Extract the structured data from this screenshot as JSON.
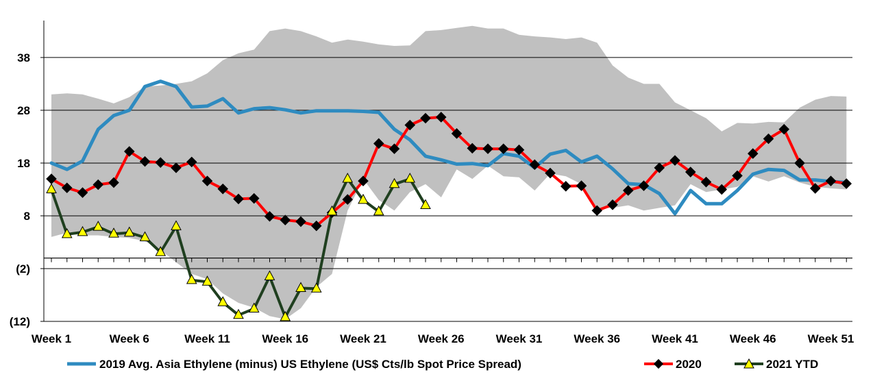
{
  "chart_data": {
    "type": "line",
    "x_tick_labels": [
      "Week 1",
      "Week 6",
      "Week 11",
      "Week 16",
      "Week 21",
      "Week 26",
      "Week 31",
      "Week 36",
      "Week 41",
      "Week 46",
      "Week 51"
    ],
    "y_tick_labels": [
      "38",
      "28",
      "18",
      "8",
      "(2)",
      "(12)"
    ],
    "y_ticks": [
      38,
      28,
      18,
      8,
      -2,
      -12
    ],
    "ylim": [
      -12,
      45
    ],
    "xlim": [
      1,
      52
    ],
    "grid": "horizontal",
    "range_band": {
      "color": "#c0c0c0",
      "upper": [
        31,
        31.2,
        31,
        30.2,
        29.3,
        30.5,
        32.5,
        32.7,
        33,
        33.5,
        35,
        37.5,
        38.8,
        39.5,
        43,
        43.5,
        43,
        42,
        40.8,
        41.4,
        41,
        40.5,
        40.2,
        40.3,
        43,
        43.2,
        43.6,
        44,
        43.5,
        43.5,
        42.3,
        42,
        41.8,
        41.5,
        41.8,
        40.8,
        36.5,
        34.2,
        33,
        33,
        29.5,
        28,
        26.5,
        24,
        25.6,
        25.5,
        25.8,
        25.7,
        28.5,
        30,
        30.7,
        30.6
      ],
      "lower": [
        4,
        4.8,
        4.3,
        4.3,
        4,
        3.8,
        3.2,
        1.5,
        -0.8,
        -3,
        -4,
        -6.7,
        -8.5,
        -9.4,
        -11,
        -11.6,
        -9.5,
        -5.5,
        -3,
        9,
        15,
        11,
        9,
        12.5,
        14,
        11.5,
        16.8,
        15,
        17.5,
        15.5,
        15.3,
        12.8,
        16,
        15.5,
        14,
        9.5,
        9.5,
        10,
        9,
        9.5,
        10,
        14,
        12.5,
        13,
        13.5,
        15.5,
        14.5,
        15.5,
        14.3,
        13.5,
        13.2,
        13
      ]
    },
    "series": [
      {
        "name": "2019 Avg. Asia Ethylene (minus) US Ethylene (US$ Cts/lb Spot Price Spread)",
        "color": "#2e8bc0",
        "values": [
          18,
          16.8,
          18.4,
          24.4,
          27,
          28,
          32.5,
          33.5,
          32.5,
          28.6,
          28.8,
          30.2,
          27.5,
          28.3,
          28.5,
          28.1,
          27.5,
          27.9,
          27.9,
          27.9,
          27.8,
          27.6,
          24.4,
          22.4,
          19.3,
          18.6,
          17.8,
          17.9,
          17.5,
          19.8,
          19.3,
          17.1,
          19.7,
          20.4,
          18.2,
          19.3,
          16.9,
          14.1,
          13.9,
          12.2,
          8.4,
          12.8,
          10.3,
          10.3,
          12.8,
          15.9,
          16.8,
          16.6,
          14.8,
          14.8,
          14.5,
          14.3
        ]
      },
      {
        "name": "2020",
        "color": "#ff0000",
        "marker": "diamond",
        "values": [
          15,
          13.3,
          12.4,
          13.9,
          14.3,
          20.2,
          18.3,
          18.1,
          17.1,
          18.2,
          14.6,
          13.1,
          11.2,
          11.3,
          7.9,
          7.2,
          6.9,
          6.1,
          8.6,
          11.1,
          14.6,
          21.7,
          20.7,
          25.2,
          26.5,
          26.7,
          23.6,
          20.8,
          20.7,
          20.7,
          20.5,
          17.7,
          16.1,
          13.6,
          13.7,
          9,
          10.1,
          12.8,
          13.7,
          17.1,
          18.5,
          16.3,
          14.4,
          13,
          15.6,
          19.8,
          22.6,
          24.4,
          18,
          13.2,
          14.6,
          14.1
        ]
      },
      {
        "name": "2021 YTD",
        "color": "#1f3f1f",
        "marker": "triangle",
        "values": [
          13,
          4.5,
          4.9,
          5.9,
          4.6,
          4.8,
          3.9,
          1.1,
          6,
          -4.2,
          -4.5,
          -8.4,
          -10.8,
          -9.6,
          -3.5,
          -11.2,
          -5.7,
          -5.8,
          8.8,
          15,
          11,
          8.8,
          14,
          15,
          10
        ]
      }
    ]
  }
}
